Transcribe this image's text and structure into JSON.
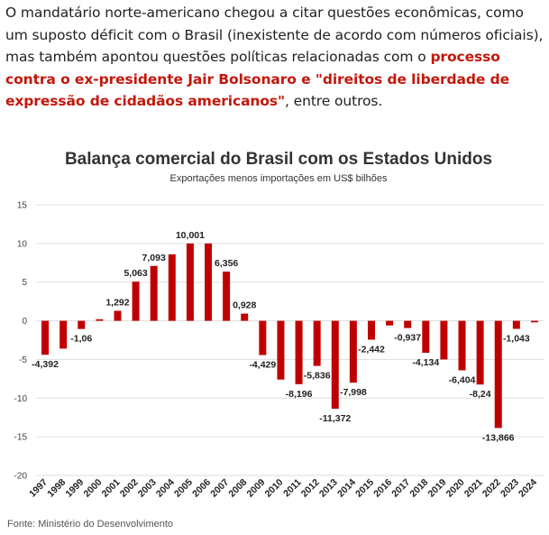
{
  "article": {
    "text_before": "O mandatário norte-americano chegou a citar questões econômicas, como um suposto déficit com o Brasil (inexistente de acordo com números oficiais), mas também apontou questões políticas relacionadas com o ",
    "highlight": "processo contra o ex-presidente Jair Bolsonaro e \"direitos de liberdade de expressão de cidadãos americanos\"",
    "text_after": ", entre outros."
  },
  "source": "Fonte: Ministério do Desenvolvimento",
  "colors": {
    "bar": "#c00000",
    "highlight": "#c4170c",
    "grid": "#dddddd"
  },
  "chart_data": {
    "type": "bar",
    "title": "Balança comercial do Brasil com os Estados Unidos",
    "subtitle": "Exportações menos importações em US$ bilhões",
    "ylim": [
      -20,
      15
    ],
    "yticks": [
      15,
      10,
      5,
      0,
      -5,
      -10,
      -15,
      -20
    ],
    "grid": true,
    "categories": [
      "1997",
      "1998",
      "1999",
      "2000",
      "2001",
      "2002",
      "2003",
      "2004",
      "2005",
      "2006",
      "2007",
      "2008",
      "2009",
      "2010",
      "2011",
      "2012",
      "2013",
      "2014",
      "2015",
      "2016",
      "2017",
      "2018",
      "2019",
      "2020",
      "2021",
      "2022",
      "2023",
      "2024"
    ],
    "values": [
      -4.392,
      -3.6,
      -1.06,
      0.2,
      1.292,
      5.063,
      7.093,
      8.6,
      10.001,
      10.0,
      6.356,
      0.928,
      -4.429,
      -7.6,
      -8.196,
      -5.836,
      -11.372,
      -7.998,
      -2.442,
      -0.6,
      -0.937,
      -4.134,
      -5.0,
      -6.404,
      -8.24,
      -13.866,
      -1.043,
      -0.2
    ],
    "data_labels": [
      "-4,392",
      "",
      "-1,06",
      "",
      "1,292",
      "5,063",
      "7,093",
      "",
      "10,001",
      "",
      "6,356",
      "0,928",
      "-4,429",
      "",
      "-8,196",
      "-5,836",
      "-11,372",
      "-7,998",
      "-2,442",
      "",
      "-0,937",
      "-4,134",
      "",
      "-6,404",
      "-8,24",
      "-13,866",
      "-1,043",
      ""
    ]
  }
}
